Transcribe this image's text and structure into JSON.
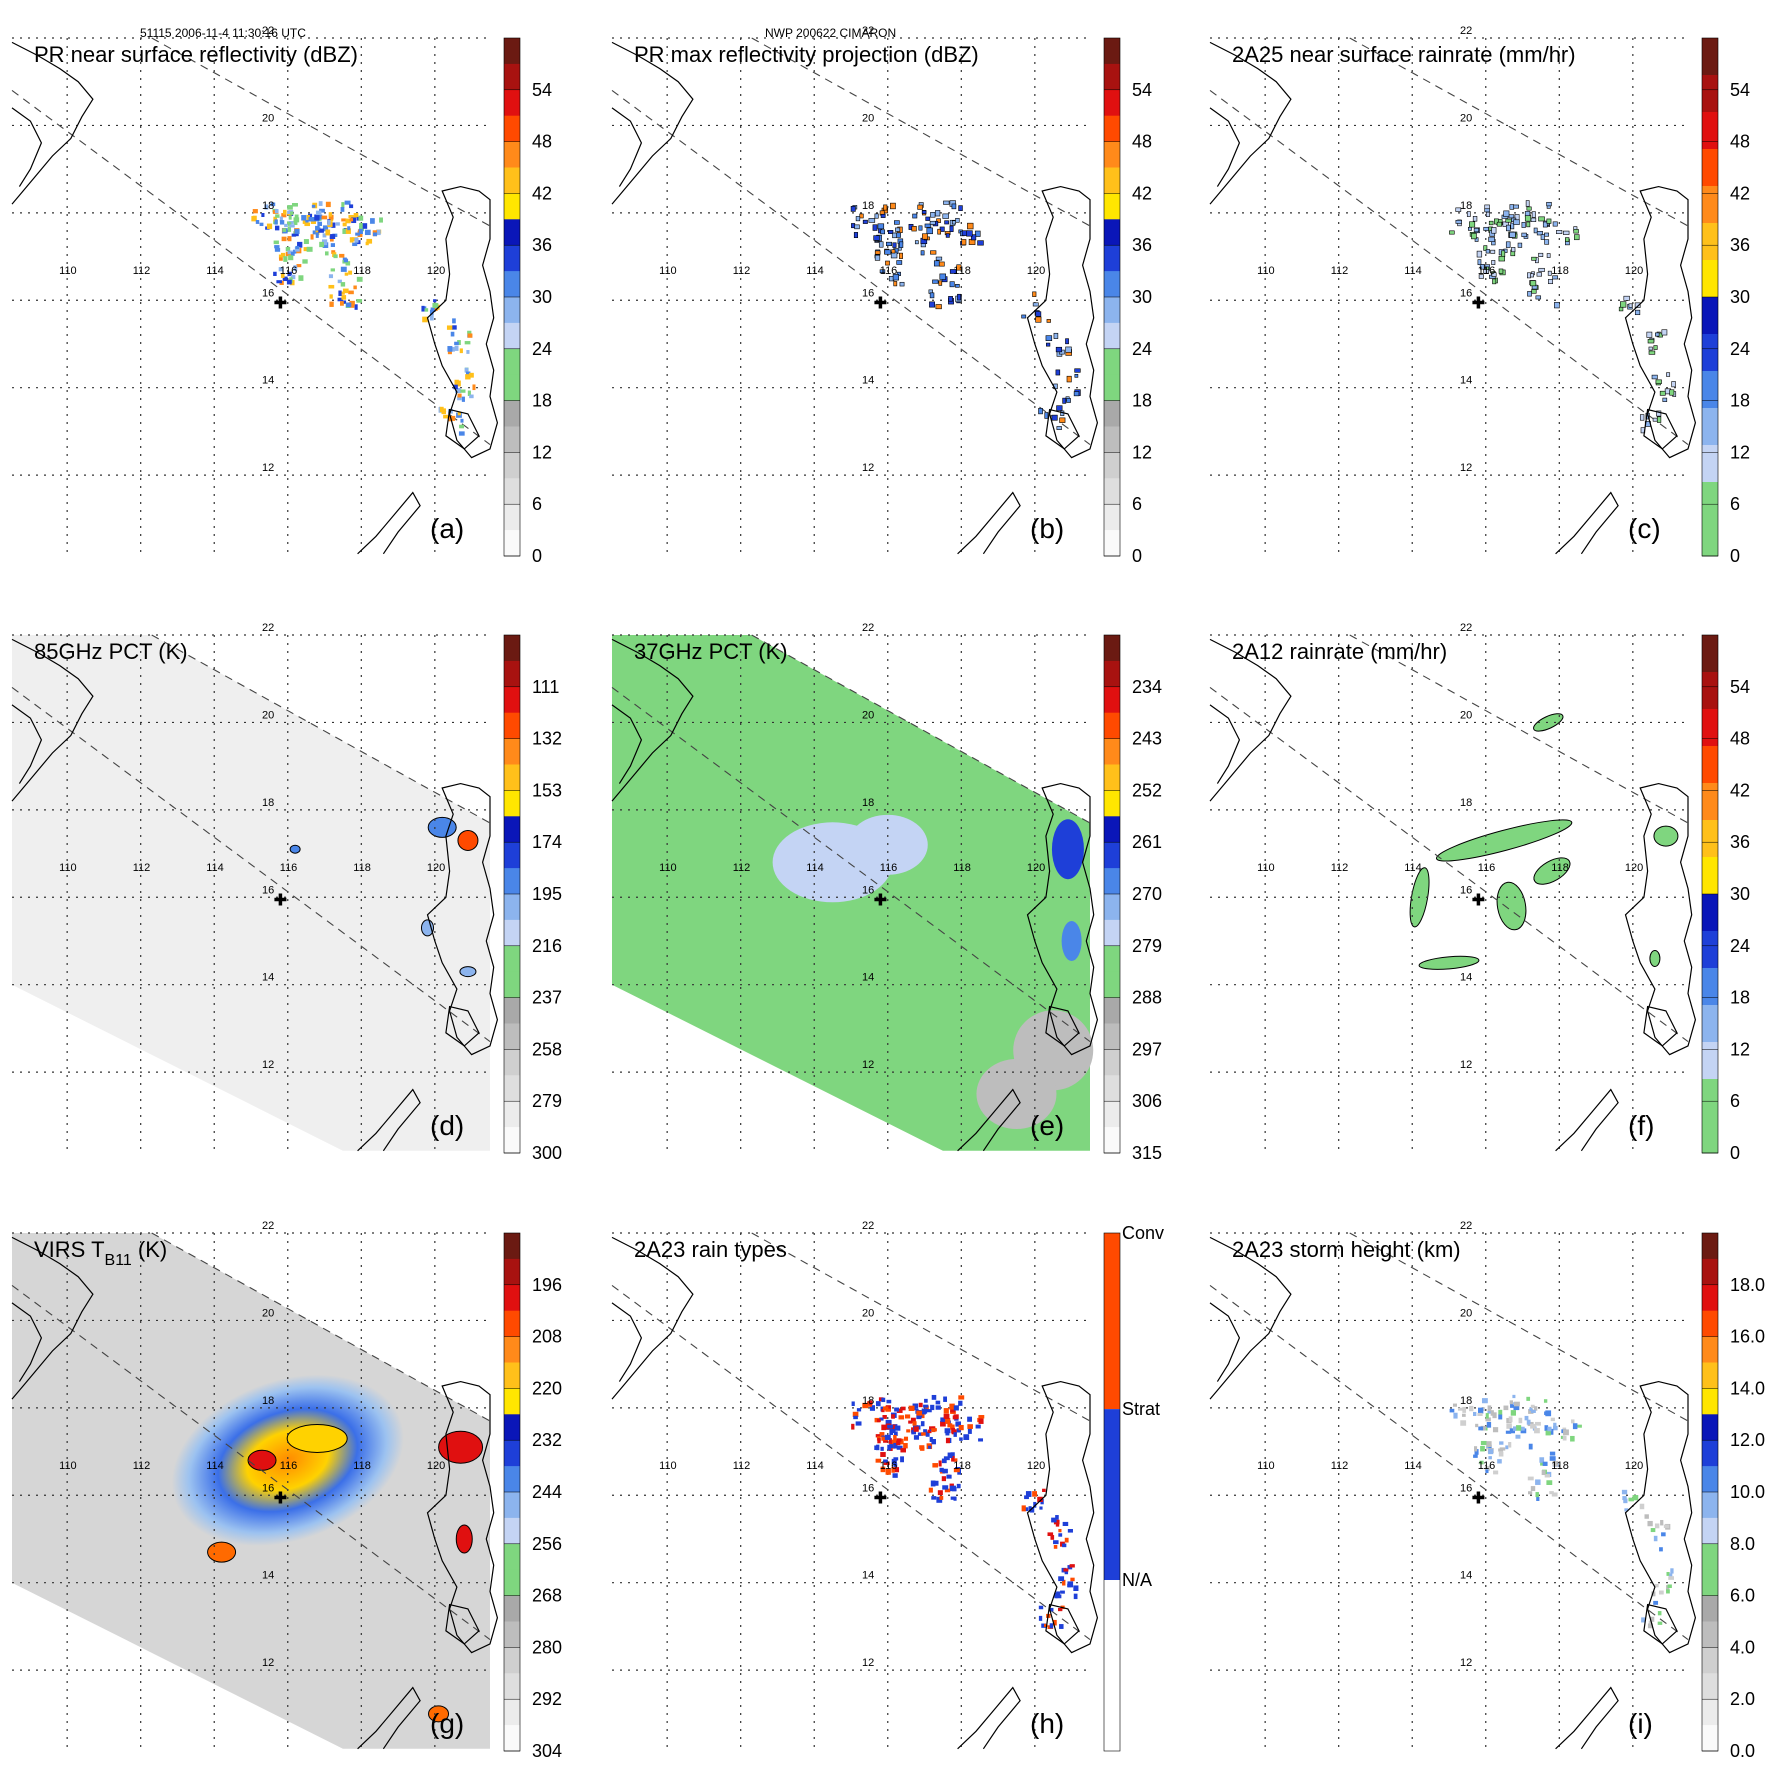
{
  "header": {
    "left": "51115 2006-11-4 11:30:16 UTC",
    "center": "NWP 200622 CIMARON"
  },
  "map": {
    "lon_labels": [
      "110",
      "112",
      "114",
      "116",
      "118",
      "120"
    ],
    "lat_labels": [
      "22",
      "20",
      "18",
      "16",
      "14",
      "12"
    ]
  },
  "colors": {
    "coast": "#000000",
    "grid": "#333333",
    "gray_scale": [
      "#fafafa",
      "#ececec",
      "#dedede",
      "#cfcfcf",
      "#bdbdbd",
      "#a9a9a9"
    ],
    "green": "#7fd67f",
    "blues": [
      "#c4d4f4",
      "#8cb4ee",
      "#4a86e8",
      "#1e3fd8",
      "#0a16b8"
    ],
    "warm": [
      "#ffe600",
      "#ffc61a",
      "#ff9a1a",
      "#ff6a00",
      "#ff3b00",
      "#e01010",
      "#b00d0d",
      "#7a0d0d"
    ]
  },
  "panels": [
    {
      "id": "a",
      "title": "PR near surface reflectivity (dBZ)",
      "label": "(a)",
      "cbar": "dbz",
      "ticks": [
        "54",
        "48",
        "42",
        "36",
        "30",
        "24",
        "18",
        "12",
        "6",
        "0"
      ]
    },
    {
      "id": "b",
      "title": "PR max reflectivity projection (dBZ)",
      "label": "(b)",
      "cbar": "dbz",
      "ticks": [
        "54",
        "48",
        "42",
        "36",
        "30",
        "24",
        "18",
        "12",
        "6",
        "0"
      ]
    },
    {
      "id": "c",
      "title": "2A25 near surface rainrate (mm/hr)",
      "label": "(c)",
      "cbar": "rain",
      "ticks": [
        "54",
        "48",
        "42",
        "36",
        "30",
        "24",
        "18",
        "12",
        "6",
        "0"
      ]
    },
    {
      "id": "d",
      "title": "85GHz PCT (K)",
      "label": "(d)",
      "cbar": "pct",
      "ticks": [
        "111",
        "132",
        "153",
        "174",
        "195",
        "216",
        "237",
        "258",
        "279",
        "300"
      ]
    },
    {
      "id": "e",
      "title": "37GHz PCT (K)",
      "label": "(e)",
      "cbar": "pct",
      "ticks": [
        "234",
        "243",
        "252",
        "261",
        "270",
        "279",
        "288",
        "297",
        "306",
        "315"
      ]
    },
    {
      "id": "f",
      "title": "2A12 rainrate (mm/hr)",
      "label": "(f)",
      "cbar": "rain",
      "ticks": [
        "54",
        "48",
        "42",
        "36",
        "30",
        "24",
        "18",
        "12",
        "6",
        "0"
      ]
    },
    {
      "id": "g",
      "title": "VIRS T",
      "title_sub": "B11",
      "title_suffix": " (K)",
      "label": "(g)",
      "cbar": "virs",
      "ticks": [
        "196",
        "208",
        "220",
        "232",
        "244",
        "256",
        "268",
        "280",
        "292",
        "304"
      ]
    },
    {
      "id": "h",
      "title": "2A23 rain types",
      "label": "(h)",
      "cbar": "types",
      "ticks": [
        "Conv",
        "Strat",
        "N/A"
      ]
    },
    {
      "id": "i",
      "title": "2A23 storm height (km)",
      "label": "(i)",
      "cbar": "height",
      "ticks": [
        "18.0",
        "16.0",
        "14.0",
        "12.0",
        "10.0",
        "8.0",
        "6.0",
        "4.0",
        "2.0",
        "0.0"
      ]
    }
  ]
}
